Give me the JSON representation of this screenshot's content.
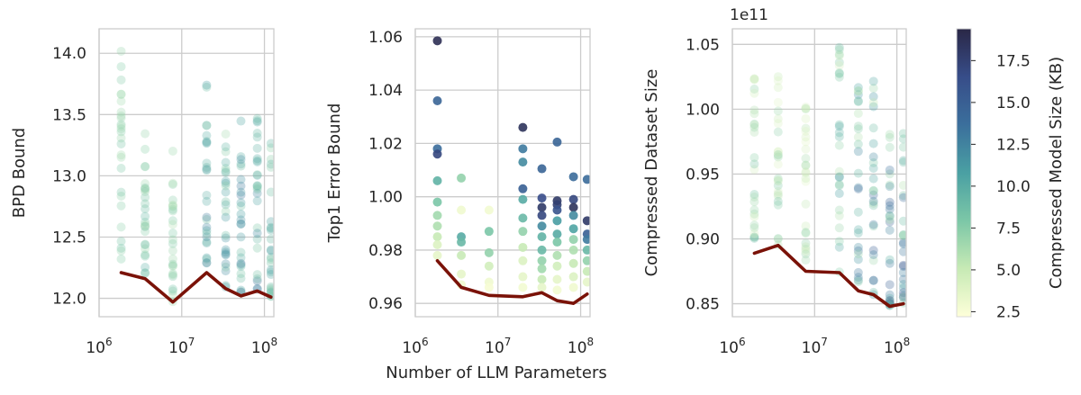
{
  "chart_data": {
    "type": "scatter",
    "shared_xlabel": "Number of LLM Parameters",
    "x_ticks": [
      {
        "value": 1000000,
        "base": "10",
        "exp": "6"
      },
      {
        "value": 10000000,
        "base": "10",
        "exp": "7"
      },
      {
        "value": 100000000,
        "base": "10",
        "exp": "8"
      }
    ],
    "xlim": [
      1000000,
      130000000
    ],
    "x_positions": [
      1850000,
      3600000,
      7800000,
      20000000,
      34000000,
      52000000,
      82000000,
      120000000
    ],
    "colormap": {
      "label": "Compressed Model Size (KB)",
      "range": [
        2.2,
        19.4
      ],
      "ticks": [
        2.5,
        5.0,
        7.5,
        10.0,
        12.5,
        15.0,
        17.5
      ],
      "tick_labels": [
        "2.5",
        "5.0",
        "7.5",
        "10.0",
        "12.5",
        "15.0",
        "17.5"
      ],
      "colors": [
        "#feffd9",
        "#c7eab5",
        "#7cc7a7",
        "#4aa0a3",
        "#3b6f9c",
        "#374d89",
        "#2a2746"
      ]
    },
    "line_color": "#7a1208",
    "panels": [
      {
        "ylabel": "BPD Bound",
        "ylim": [
          11.85,
          14.2
        ],
        "y_ticks": [
          12.0,
          12.5,
          13.0,
          13.5,
          14.0
        ],
        "y_tick_labels": [
          "12.0",
          "12.5",
          "13.0",
          "13.5",
          "14.0"
        ],
        "offset_label": "",
        "point_alpha": 0.3,
        "best_line": [
          12.21,
          12.16,
          11.97,
          12.21,
          12.08,
          12.02,
          12.06,
          12.01
        ],
        "clouds": [
          [
            12.2,
            14.08,
            5.5,
            9.0
          ],
          [
            12.2,
            13.35,
            5.0,
            10.0
          ],
          [
            11.97,
            13.25,
            4.5,
            9.0
          ],
          [
            12.2,
            13.88,
            6.0,
            14.0
          ],
          [
            12.08,
            13.38,
            5.0,
            13.0
          ],
          [
            12.02,
            13.5,
            5.5,
            16.0
          ],
          [
            12.06,
            13.48,
            6.0,
            14.0
          ],
          [
            12.01,
            13.4,
            6.0,
            12.0
          ]
        ],
        "highlights": []
      },
      {
        "ylabel": "Top1 Error Bound",
        "ylim": [
          0.955,
          1.063
        ],
        "y_ticks": [
          0.96,
          0.98,
          1.0,
          1.02,
          1.04,
          1.06
        ],
        "y_tick_labels": [
          "0.96",
          "0.98",
          "1.00",
          "1.02",
          "1.04",
          "1.06"
        ],
        "offset_label": "",
        "point_alpha": 0.9,
        "best_line": [
          0.976,
          0.966,
          0.963,
          0.9625,
          0.964,
          0.961,
          0.96,
          0.9635
        ],
        "clouds": [],
        "highlights": [
          [
            0,
            1.0585,
            18.8
          ],
          [
            0,
            1.036,
            14.5
          ],
          [
            0,
            1.018,
            13.8
          ],
          [
            0,
            1.016,
            17.0
          ],
          [
            0,
            1.006,
            9.5
          ],
          [
            0,
            0.998,
            8.0
          ],
          [
            0,
            0.993,
            6.5
          ],
          [
            0,
            0.989,
            6.0
          ],
          [
            0,
            0.985,
            5.0
          ],
          [
            0,
            0.982,
            4.0
          ],
          [
            0,
            0.978,
            3.5
          ],
          [
            1,
            1.007,
            7.0
          ],
          [
            1,
            0.995,
            3.0
          ],
          [
            1,
            0.985,
            10.0
          ],
          [
            1,
            0.983,
            9.0
          ],
          [
            1,
            0.978,
            5.0
          ],
          [
            1,
            0.971,
            3.5
          ],
          [
            1,
            0.967,
            3.0
          ],
          [
            2,
            0.995,
            2.8
          ],
          [
            2,
            0.987,
            8.0
          ],
          [
            2,
            0.979,
            7.0
          ],
          [
            2,
            0.974,
            4.5
          ],
          [
            2,
            0.968,
            3.0
          ],
          [
            2,
            0.966,
            2.6
          ],
          [
            3,
            1.026,
            18.5
          ],
          [
            3,
            1.018,
            13.0
          ],
          [
            3,
            1.013,
            12.0
          ],
          [
            3,
            1.003,
            15.0
          ],
          [
            3,
            0.999,
            10.0
          ],
          [
            3,
            0.992,
            9.0
          ],
          [
            3,
            0.987,
            7.0
          ],
          [
            3,
            0.981,
            5.0
          ],
          [
            3,
            0.976,
            4.0
          ],
          [
            3,
            0.97,
            3.5
          ],
          [
            3,
            0.966,
            2.8
          ],
          [
            4,
            1.0105,
            14.5
          ],
          [
            4,
            0.9995,
            16.5
          ],
          [
            4,
            0.996,
            18.0
          ],
          [
            4,
            0.993,
            17.0
          ],
          [
            4,
            0.989,
            12.0
          ],
          [
            4,
            0.985,
            9.5
          ],
          [
            4,
            0.98,
            9.0
          ],
          [
            4,
            0.976,
            7.0
          ],
          [
            4,
            0.973,
            6.5
          ],
          [
            4,
            0.969,
            5.0
          ],
          [
            4,
            0.966,
            3.5
          ],
          [
            5,
            1.0205,
            14.5
          ],
          [
            5,
            0.9985,
            18.0
          ],
          [
            5,
            0.997,
            17.5
          ],
          [
            5,
            0.995,
            16.0
          ],
          [
            5,
            0.991,
            11.0
          ],
          [
            5,
            0.986,
            10.0
          ],
          [
            5,
            0.983,
            8.0
          ],
          [
            5,
            0.978,
            6.0
          ],
          [
            5,
            0.974,
            4.5
          ],
          [
            5,
            0.969,
            3.5
          ],
          [
            5,
            0.965,
            2.8
          ],
          [
            6,
            1.0075,
            14.0
          ],
          [
            6,
            0.999,
            17.0
          ],
          [
            6,
            0.996,
            18.5
          ],
          [
            6,
            0.993,
            12.0
          ],
          [
            6,
            0.988,
            10.5
          ],
          [
            6,
            0.984,
            7.0
          ],
          [
            6,
            0.98,
            6.0
          ],
          [
            6,
            0.975,
            5.0
          ],
          [
            6,
            0.97,
            4.0
          ],
          [
            6,
            0.966,
            3.0
          ],
          [
            7,
            1.0065,
            14.0
          ],
          [
            7,
            0.991,
            18.0
          ],
          [
            7,
            0.986,
            15.0
          ],
          [
            7,
            0.984,
            13.0
          ],
          [
            7,
            0.98,
            9.0
          ],
          [
            7,
            0.976,
            7.0
          ],
          [
            7,
            0.972,
            5.0
          ],
          [
            7,
            0.968,
            3.5
          ]
        ]
      },
      {
        "ylabel": "Compressed Dataset Size",
        "ylim": [
          0.84,
          1.062
        ],
        "y_ticks": [
          0.85,
          0.9,
          0.95,
          1.0,
          1.05
        ],
        "y_tick_labels": [
          "0.85",
          "0.90",
          "0.95",
          "1.00",
          "1.05"
        ],
        "offset_label": "1e11",
        "point_alpha": 0.3,
        "best_line": [
          0.889,
          0.895,
          0.875,
          0.874,
          0.86,
          0.857,
          0.848,
          0.85
        ],
        "clouds": [
          [
            0.889,
            1.03,
            2.6,
            10.0
          ],
          [
            0.895,
            1.032,
            2.5,
            9.0
          ],
          [
            0.875,
            1.02,
            2.5,
            8.0
          ],
          [
            0.874,
            1.05,
            2.5,
            13.0
          ],
          [
            0.86,
            1.03,
            2.6,
            17.0
          ],
          [
            0.857,
            1.028,
            2.6,
            18.0
          ],
          [
            0.848,
            1.0,
            2.8,
            19.0
          ],
          [
            0.85,
            0.985,
            3.0,
            18.5
          ]
        ],
        "highlights": []
      }
    ]
  }
}
